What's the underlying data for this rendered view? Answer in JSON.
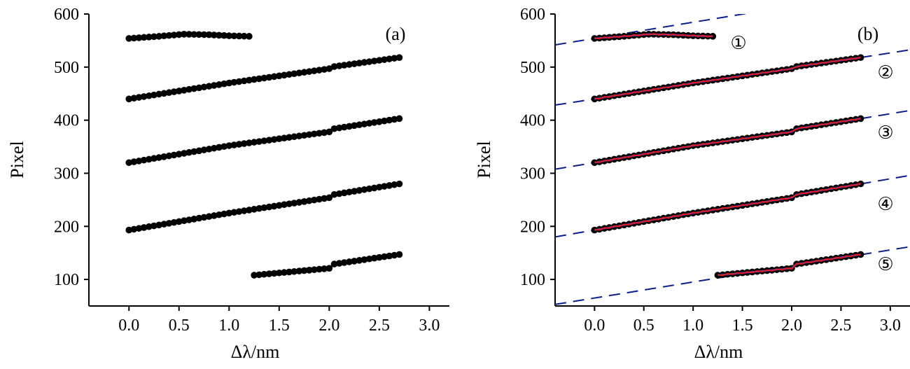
{
  "chart_data": [
    {
      "panel": "a",
      "type": "scatter",
      "panel_label": "(a)",
      "xlabel": "Δλ/nm",
      "ylabel": "Pixel",
      "xlim": [
        -0.4,
        3.2
      ],
      "ylim": [
        50,
        600
      ],
      "xticks": [
        "0.0",
        "0.5",
        "1.0",
        "1.5",
        "2.0",
        "2.5",
        "3.0"
      ],
      "yticks": [
        "100",
        "200",
        "300",
        "400",
        "500",
        "600"
      ],
      "grid": false,
      "marker_color": "#000000",
      "series": [
        {
          "x_start": 0.0,
          "x_end": 1.2,
          "points": 25,
          "profile": [
            [
              0.0,
              554
            ],
            [
              0.3,
              558
            ],
            [
              0.55,
              562
            ],
            [
              0.8,
              561
            ],
            [
              1.0,
              559
            ],
            [
              1.2,
              558
            ]
          ]
        },
        {
          "x_start": 0.0,
          "x_end": 2.7,
          "points": 55,
          "profile": [
            [
              0.0,
              440
            ],
            [
              1.0,
              470
            ],
            [
              2.0,
              497
            ],
            [
              2.05,
              501
            ],
            [
              2.7,
              518
            ]
          ]
        },
        {
          "x_start": 0.0,
          "x_end": 2.7,
          "points": 55,
          "profile": [
            [
              0.0,
              320
            ],
            [
              1.0,
              352
            ],
            [
              2.0,
              378
            ],
            [
              2.05,
              384
            ],
            [
              2.7,
              403
            ]
          ]
        },
        {
          "x_start": 0.0,
          "x_end": 2.7,
          "points": 55,
          "profile": [
            [
              0.0,
              193
            ],
            [
              1.0,
              225
            ],
            [
              2.0,
              254
            ],
            [
              2.05,
              260
            ],
            [
              2.7,
              280
            ]
          ]
        },
        {
          "x_start": 1.25,
          "x_end": 2.7,
          "points": 30,
          "profile": [
            [
              1.25,
              108
            ],
            [
              2.0,
              121
            ],
            [
              2.05,
              129
            ],
            [
              2.7,
              147
            ]
          ]
        }
      ]
    },
    {
      "panel": "b",
      "type": "scatter",
      "panel_label": "(b)",
      "xlabel": "Δλ/nm",
      "ylabel": "Pixel",
      "xlim": [
        -0.4,
        3.2
      ],
      "ylim": [
        50,
        600
      ],
      "xticks": [
        "0.0",
        "0.5",
        "1.0",
        "1.5",
        "2.0",
        "2.5",
        "3.0"
      ],
      "yticks": [
        "100",
        "200",
        "300",
        "400",
        "500",
        "600"
      ],
      "grid": false,
      "marker_color": "#000000",
      "fit_colors": {
        "red": "#e8161b",
        "blue": "#3a4fd8",
        "dashed": "#0a1f8f"
      },
      "series_labels": [
        "①",
        "②",
        "③",
        "④",
        "⑤"
      ],
      "series": [
        {
          "x_start": 0.0,
          "x_end": 1.2,
          "points": 25,
          "profile": [
            [
              0.0,
              554
            ],
            [
              0.3,
              558
            ],
            [
              0.55,
              562
            ],
            [
              0.8,
              561
            ],
            [
              1.0,
              559
            ],
            [
              1.2,
              558
            ]
          ],
          "trend": {
            "slope": 30.5,
            "intercept": 554
          }
        },
        {
          "x_start": 0.0,
          "x_end": 2.7,
          "points": 55,
          "profile": [
            [
              0.0,
              440
            ],
            [
              1.0,
              470
            ],
            [
              2.0,
              497
            ],
            [
              2.05,
              501
            ],
            [
              2.7,
              518
            ]
          ],
          "trend": {
            "slope": 28.9,
            "intercept": 440
          }
        },
        {
          "x_start": 0.0,
          "x_end": 2.7,
          "points": 55,
          "profile": [
            [
              0.0,
              320
            ],
            [
              1.0,
              352
            ],
            [
              2.0,
              378
            ],
            [
              2.05,
              384
            ],
            [
              2.7,
              403
            ]
          ],
          "trend": {
            "slope": 30.7,
            "intercept": 320
          }
        },
        {
          "x_start": 0.0,
          "x_end": 2.7,
          "points": 55,
          "profile": [
            [
              0.0,
              193
            ],
            [
              1.0,
              225
            ],
            [
              2.0,
              254
            ],
            [
              2.05,
              260
            ],
            [
              2.7,
              280
            ]
          ],
          "trend": {
            "slope": 32.2,
            "intercept": 193
          }
        },
        {
          "x_start": 1.25,
          "x_end": 2.7,
          "points": 30,
          "profile": [
            [
              1.25,
              108
            ],
            [
              2.0,
              121
            ],
            [
              2.05,
              129
            ],
            [
              2.7,
              147
            ]
          ],
          "trend": {
            "slope": 30.2,
            "intercept": 65
          }
        }
      ]
    }
  ]
}
